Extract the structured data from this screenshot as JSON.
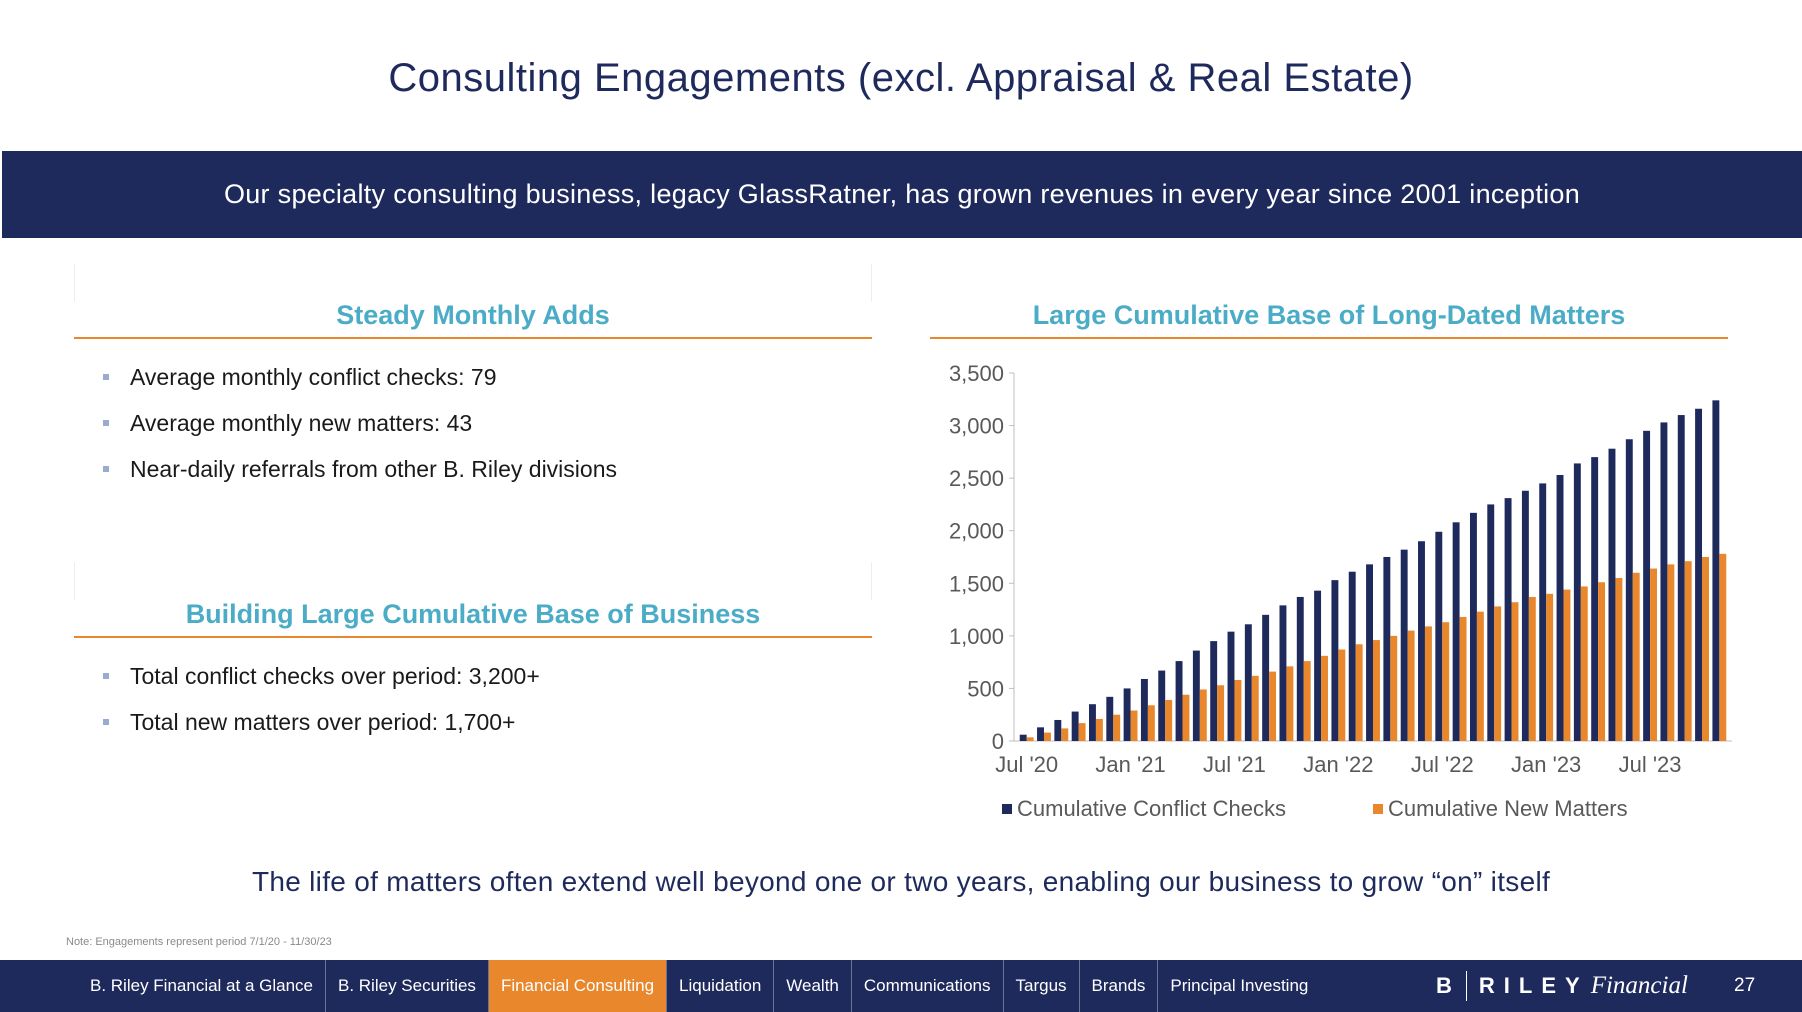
{
  "title": "Consulting Engagements (excl. Appraisal & Real Estate)",
  "banner": "Our specialty consulting business, legacy GlassRatner, has grown revenues in every year since 2001 inception",
  "sections": {
    "monthly": {
      "heading": "Steady Monthly Adds",
      "bullets": [
        "Average monthly conflict checks: 79",
        "Average monthly new matters: 43",
        "Near-daily referrals from other B. Riley divisions"
      ]
    },
    "cumulative": {
      "heading": "Building Large Cumulative Base of Business",
      "bullets": [
        "Total conflict checks over period: 3,200+",
        "Total new matters over period: 1,700+"
      ]
    },
    "chart_heading": "Large Cumulative Base of Long-Dated Matters"
  },
  "tagline": "The life of matters often extend well beyond one or two years, enabling our business to grow “on” itself",
  "note": "Note: Engagements represent period 7/1/20 - 11/30/23",
  "footer": {
    "nav": [
      "B. Riley Financial at a Glance",
      "B. Riley Securities",
      "Financial Consulting",
      "Liquidation",
      "Wealth",
      "Communications",
      "Targus",
      "Brands",
      "Principal Investing"
    ],
    "active_index": 2,
    "logo": {
      "b": "B",
      "riley": "RILEY",
      "financial": "Financial"
    },
    "page_number": "27"
  },
  "colors": {
    "navy": "#1f2a5c",
    "orange": "#e8872c",
    "teal": "#4aacc6"
  },
  "chart_data": {
    "type": "bar",
    "title": "Large Cumulative Base of Long-Dated Matters",
    "categories": [
      "Jul '20",
      "Aug '20",
      "Sep '20",
      "Oct '20",
      "Nov '20",
      "Dec '20",
      "Jan '21",
      "Feb '21",
      "Mar '21",
      "Apr '21",
      "May '21",
      "Jun '21",
      "Jul '21",
      "Aug '21",
      "Sep '21",
      "Oct '21",
      "Nov '21",
      "Dec '21",
      "Jan '22",
      "Feb '22",
      "Mar '22",
      "Apr '22",
      "May '22",
      "Jun '22",
      "Jul '22",
      "Aug '22",
      "Sep '22",
      "Oct '22",
      "Nov '22",
      "Dec '22",
      "Jan '23",
      "Feb '23",
      "Mar '23",
      "Apr '23",
      "May '23",
      "Jun '23",
      "Jul '23",
      "Aug '23",
      "Sep '23",
      "Oct '23",
      "Nov '23"
    ],
    "tick_labels": [
      "Jul '20",
      "Jan '21",
      "Jul '21",
      "Jan '22",
      "Jul '22",
      "Jan '23",
      "Jul '23"
    ],
    "tick_indices": [
      0,
      6,
      12,
      18,
      24,
      30,
      36
    ],
    "series": [
      {
        "name": "Cumulative Conflict Checks",
        "color": "#1f2a5c",
        "values": [
          60,
          130,
          200,
          280,
          350,
          420,
          500,
          590,
          670,
          760,
          860,
          950,
          1040,
          1110,
          1200,
          1290,
          1370,
          1430,
          1530,
          1610,
          1680,
          1750,
          1820,
          1900,
          1990,
          2080,
          2170,
          2250,
          2310,
          2380,
          2450,
          2530,
          2640,
          2700,
          2780,
          2870,
          2950,
          3030,
          3100,
          3160,
          3240
        ]
      },
      {
        "name": "Cumulative New Matters",
        "color": "#e8872c",
        "values": [
          35,
          80,
          120,
          170,
          210,
          250,
          290,
          340,
          390,
          440,
          490,
          530,
          580,
          620,
          660,
          710,
          760,
          810,
          870,
          920,
          960,
          1000,
          1050,
          1090,
          1130,
          1180,
          1230,
          1280,
          1320,
          1370,
          1400,
          1440,
          1470,
          1510,
          1550,
          1600,
          1640,
          1680,
          1710,
          1750,
          1780
        ]
      }
    ],
    "y_ticks": [
      "3,500",
      "3,000",
      "2,500",
      "2,000",
      "1,500",
      "1,000",
      "500",
      "0"
    ],
    "y_tick_values": [
      3500,
      3000,
      2500,
      2000,
      1500,
      1000,
      500,
      0
    ],
    "ylim": [
      0,
      3500
    ],
    "legend_position": "bottom"
  }
}
